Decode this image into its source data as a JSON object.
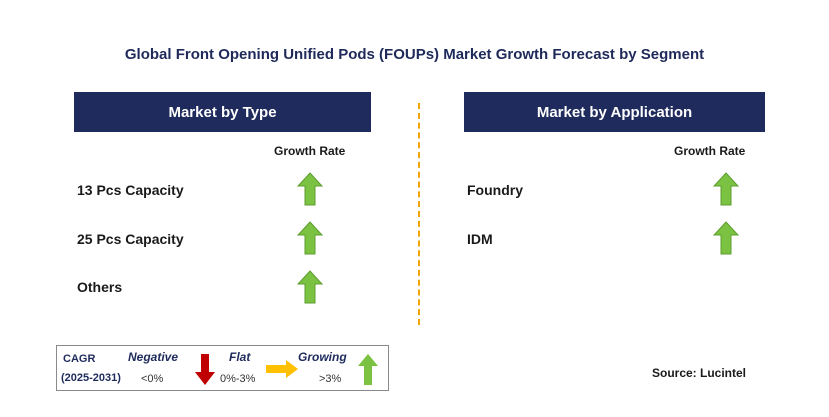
{
  "title": "Global Front Opening Unified Pods (FOUPs) Market Growth Forecast by Segment",
  "panels": [
    {
      "header": "Market by Type",
      "growth_rate_label": "Growth Rate",
      "rows": [
        {
          "label": "13 Pcs Capacity",
          "trend": "growing"
        },
        {
          "label": "25 Pcs Capacity",
          "trend": "growing"
        },
        {
          "label": "Others",
          "trend": "growing"
        }
      ]
    },
    {
      "header": "Market by Application",
      "growth_rate_label": "Growth Rate",
      "rows": [
        {
          "label": "Foundry",
          "trend": "growing"
        },
        {
          "label": "IDM",
          "trend": "growing"
        }
      ]
    }
  ],
  "legend": {
    "cagr_label": "CAGR",
    "period": "(2025-2031)",
    "negative": {
      "label": "Negative",
      "range": "<0%",
      "icon": "red-down-arrow-icon"
    },
    "flat": {
      "label": "Flat",
      "range": "0%-3%",
      "icon": "orange-right-arrow-icon"
    },
    "growing": {
      "label": "Growing",
      "range": ">3%",
      "icon": "green-up-arrow-icon"
    }
  },
  "source": "Source: Lucintel",
  "colors": {
    "header_bg": "#1e2b5c",
    "divider": "#f0a500",
    "up_arrow": "#7bc142",
    "down_arrow": "#c00000",
    "flat_arrow": "#ffc000"
  }
}
